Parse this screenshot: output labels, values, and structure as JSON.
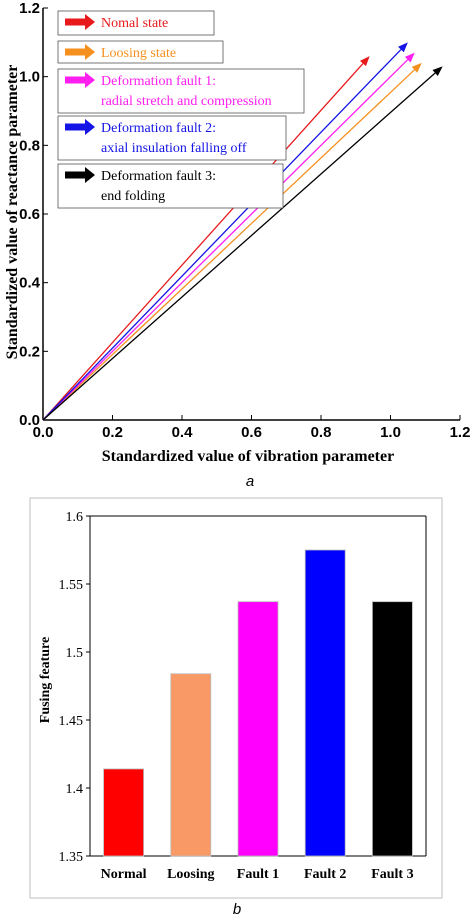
{
  "chart_data": [
    {
      "type": "line",
      "xlabel": "Standardized value of  vibration parameter",
      "ylabel": "Standardized value of reactance  parameter",
      "xlim": [
        0,
        1.2
      ],
      "ylim": [
        0,
        1.2
      ],
      "x_ticks": [
        "0.0",
        "0.2",
        "0.4",
        "0.6",
        "0.8",
        "1.0",
        "1.2"
      ],
      "y_ticks": [
        "0.0",
        "0.2",
        "0.4",
        "0.6",
        "0.8",
        "1.0",
        "1.2"
      ],
      "caption": "a",
      "legend_placement": "top-left",
      "series": [
        {
          "name": "Nomal state",
          "color": "#e8191b",
          "x": [
            0,
            0.94
          ],
          "y": [
            0,
            1.06
          ]
        },
        {
          "name": "Loosing state",
          "color": "#f5901e",
          "x": [
            0,
            1.09
          ],
          "y": [
            0,
            1.04
          ]
        },
        {
          "name": "Deformation fault 1:",
          "name_line2": "radial stretch and compression",
          "color": "#ff1ef0",
          "x": [
            0,
            1.07
          ],
          "y": [
            0,
            1.07
          ]
        },
        {
          "name": "Deformation fault 2:",
          "name_line2": "axial insulation falling off",
          "color": "#1414e6",
          "x": [
            0,
            1.05
          ],
          "y": [
            0,
            1.1
          ]
        },
        {
          "name": "Deformation fault 3:",
          "name_line2": "end folding",
          "color": "#000000",
          "x": [
            0,
            1.15
          ],
          "y": [
            0,
            1.03
          ]
        }
      ]
    },
    {
      "type": "bar",
      "ylabel": "Fusing feature",
      "ylim": [
        1.35,
        1.6
      ],
      "y_ticks": [
        "1.35",
        "1.4",
        "1.45",
        "1.5",
        "1.55",
        "1.6"
      ],
      "caption": "b",
      "categories": [
        "Normal",
        "Loosing",
        "Fault 1",
        "Fault 2",
        "Fault 3"
      ],
      "values": [
        1.414,
        1.484,
        1.537,
        1.575,
        1.537
      ],
      "colors": [
        "#ff0000",
        "#f99a66",
        "#ff00ff",
        "#0000ff",
        "#000000"
      ]
    }
  ]
}
